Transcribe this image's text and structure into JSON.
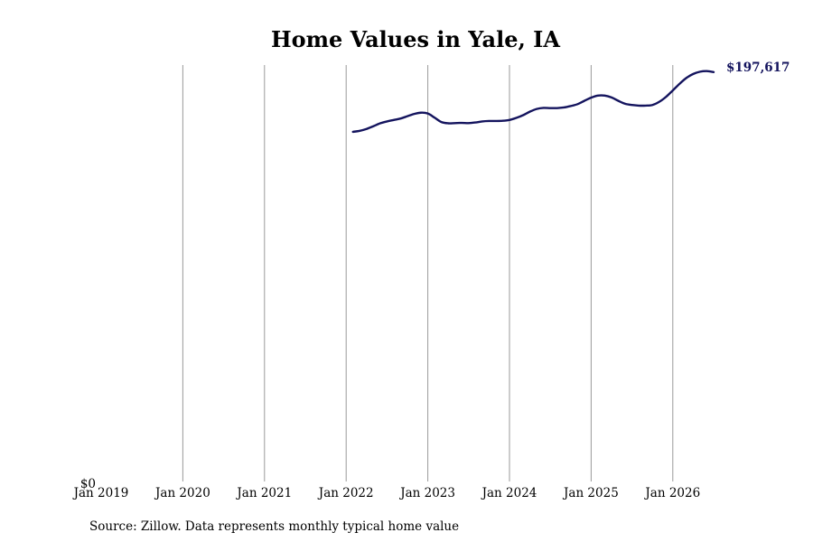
{
  "chart_data": {
    "type": "line",
    "title": "Home Values in Yale, IA",
    "xlabel": "",
    "ylabel": "",
    "y_zero_label": "$0",
    "x_ticks": [
      "Jan 2019",
      "Jan 2020",
      "Jan 2021",
      "Jan 2022",
      "Jan 2023",
      "Jan 2024",
      "Jan 2025",
      "Jan 2026"
    ],
    "x_range": [
      "2019-01",
      "2026-07"
    ],
    "ylim": [
      0,
      201000
    ],
    "grid": "vertical lines at each year tick",
    "line_color": "#14145e",
    "end_label": "$197,617",
    "series": [
      {
        "points": [
          [
            "2022-02",
            168900
          ],
          [
            "2022-03",
            169400
          ],
          [
            "2022-04",
            170300
          ],
          [
            "2022-05",
            171600
          ],
          [
            "2022-06",
            173000
          ],
          [
            "2022-07",
            173900
          ],
          [
            "2022-08",
            174600
          ],
          [
            "2022-09",
            175300
          ],
          [
            "2022-10",
            176400
          ],
          [
            "2022-11",
            177500
          ],
          [
            "2022-12",
            178100
          ],
          [
            "2023-01",
            177700
          ],
          [
            "2023-02",
            175700
          ],
          [
            "2023-03",
            173600
          ],
          [
            "2023-04",
            173000
          ],
          [
            "2023-05",
            173100
          ],
          [
            "2023-06",
            173200
          ],
          [
            "2023-07",
            173100
          ],
          [
            "2023-08",
            173400
          ],
          [
            "2023-09",
            173900
          ],
          [
            "2023-10",
            174100
          ],
          [
            "2023-11",
            174100
          ],
          [
            "2023-12",
            174200
          ],
          [
            "2024-01",
            174600
          ],
          [
            "2024-02",
            175600
          ],
          [
            "2024-03",
            176900
          ],
          [
            "2024-04",
            178600
          ],
          [
            "2024-05",
            179900
          ],
          [
            "2024-06",
            180400
          ],
          [
            "2024-07",
            180300
          ],
          [
            "2024-08",
            180300
          ],
          [
            "2024-09",
            180600
          ],
          [
            "2024-10",
            181300
          ],
          [
            "2024-11",
            182200
          ],
          [
            "2024-12",
            183800
          ],
          [
            "2025-01",
            185300
          ],
          [
            "2025-02",
            186300
          ],
          [
            "2025-03",
            186300
          ],
          [
            "2025-04",
            185400
          ],
          [
            "2025-05",
            183800
          ],
          [
            "2025-06",
            182400
          ],
          [
            "2025-07",
            181800
          ],
          [
            "2025-08",
            181500
          ],
          [
            "2025-09",
            181500
          ],
          [
            "2025-10",
            181800
          ],
          [
            "2025-11",
            183300
          ],
          [
            "2025-12",
            185700
          ],
          [
            "2026-01",
            188800
          ],
          [
            "2026-02",
            192000
          ],
          [
            "2026-03",
            194800
          ],
          [
            "2026-04",
            196700
          ],
          [
            "2026-05",
            197800
          ],
          [
            "2026-06",
            198100
          ],
          [
            "2026-07",
            197617
          ]
        ]
      }
    ],
    "source_note": "Source: Zillow. Data represents monthly typical home value"
  }
}
